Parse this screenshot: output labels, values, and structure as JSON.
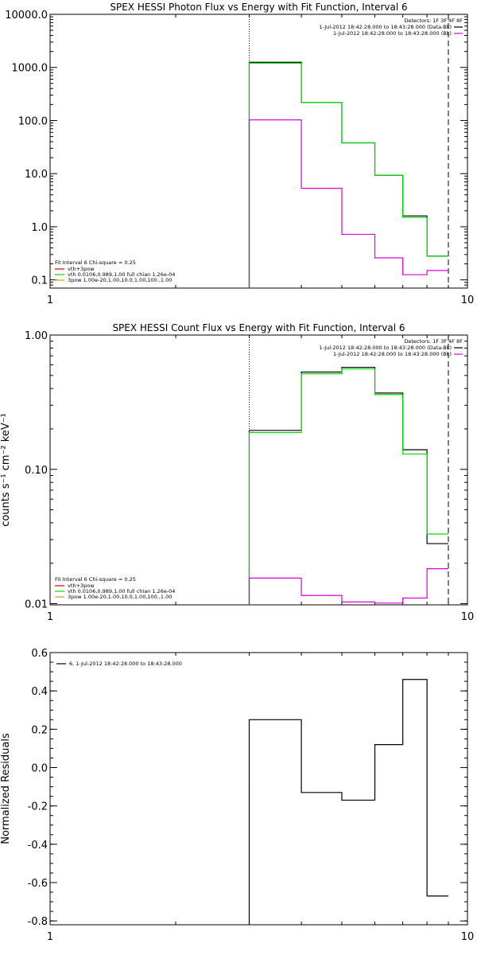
{
  "colors": {
    "black": "#000000",
    "green": "#00dd00",
    "magenta": "#dd00dd",
    "red": "#dd0000",
    "orange": "#dd9900"
  },
  "chart_data": [
    {
      "type": "line",
      "title": "SPEX HESSI Photon Flux vs Energy with Fit Function, Interval 6",
      "xlabel": "",
      "ylabel": "",
      "xscale": "log",
      "yscale": "log",
      "xlim": [
        1,
        10
      ],
      "ylim": [
        0.07,
        10000
      ],
      "xticks": [
        {
          "v": 1,
          "label": "1"
        },
        {
          "v": 10,
          "label": "10"
        }
      ],
      "yticks": [
        {
          "v": 0.1,
          "label": "0.1"
        },
        {
          "v": 1,
          "label": "1.0"
        },
        {
          "v": 10,
          "label": "10.0"
        },
        {
          "v": 100,
          "label": "100.0"
        },
        {
          "v": 1000,
          "label": "1000.0"
        },
        {
          "v": 10000,
          "label": "10000.0"
        }
      ],
      "vlines": [
        {
          "x": 3,
          "style": "dotted"
        },
        {
          "x": 9,
          "style": "dashed"
        }
      ],
      "bin_edges": [
        3,
        4,
        5,
        6,
        7,
        8,
        9
      ],
      "series": [
        {
          "color": "black",
          "values": [
            1250,
            220,
            38,
            9.3,
            1.6,
            0.28
          ]
        },
        {
          "color": "green",
          "values": [
            1200,
            220,
            38,
            9.3,
            1.5,
            0.28
          ]
        },
        {
          "color": "magenta",
          "values": [
            103,
            5.3,
            0.72,
            0.26,
            0.125,
            0.15
          ]
        }
      ],
      "legend_top": {
        "header": "Detectors: 1F 3F 4F 8F",
        "entries": [
          {
            "label": "1-Jul-2012 18:42:28.000 to 18:43:28.000 (Data-Bk)",
            "color": "black"
          },
          {
            "label": "1-Jul-2012 18:42:28.000 to 18:43:28.000 (Bk)",
            "color": "magenta"
          }
        ]
      },
      "legend_fit": {
        "header": "Fit Interval 6   Chi-square = 0.25",
        "entries": [
          {
            "label": "vth+3pow",
            "color": "red"
          },
          {
            "label": "vth 0.0106,0.989,1.00  full chian 1.26e-04",
            "color": "green"
          },
          {
            "label": "3pow 1.00e-20,1.00,10.0,1.00,100.,1.00",
            "color": "orange"
          }
        ]
      }
    },
    {
      "type": "line",
      "title": "SPEX HESSI Count Flux vs Energy with Fit Function, Interval 6",
      "xlabel": "",
      "ylabel": "counts s⁻¹ cm⁻² keV⁻¹",
      "xscale": "log",
      "yscale": "log",
      "xlim": [
        1,
        10
      ],
      "ylim": [
        0.0098,
        1.0
      ],
      "xticks": [
        {
          "v": 1,
          "label": "1"
        },
        {
          "v": 10,
          "label": "10"
        }
      ],
      "yticks": [
        {
          "v": 0.01,
          "label": "0.01"
        },
        {
          "v": 0.1,
          "label": "0.10"
        },
        {
          "v": 1,
          "label": "1.00"
        }
      ],
      "vlines": [
        {
          "x": 3,
          "style": "dotted"
        },
        {
          "x": 9,
          "style": "dashed"
        }
      ],
      "bin_edges": [
        3,
        4,
        5,
        6,
        7,
        8,
        9
      ],
      "series": [
        {
          "color": "black",
          "values": [
            0.195,
            0.53,
            0.575,
            0.37,
            0.14,
            0.028
          ]
        },
        {
          "color": "green",
          "values": [
            0.188,
            0.515,
            0.56,
            0.36,
            0.13,
            0.033
          ]
        },
        {
          "color": "magenta",
          "values": [
            0.0155,
            0.0115,
            0.0103,
            0.0101,
            0.011,
            0.0182
          ]
        }
      ],
      "legend_top": {
        "header": "Detectors: 1F 3F 4F 8F",
        "entries": [
          {
            "label": "1-Jul-2012 18:42:28.000 to 18:43:28.000 (Data-Bk)",
            "color": "black"
          },
          {
            "label": "1-Jul-2012 18:42:28.000 to 18:43:28.000 (Bk)",
            "color": "magenta"
          }
        ]
      },
      "legend_fit": {
        "header": "Fit Interval 6   Chi-square = 0.25",
        "entries": [
          {
            "label": "vth+3pow",
            "color": "red"
          },
          {
            "label": "vth 0.0106,0.989,1.00  full chian 1.26e-04",
            "color": "green"
          },
          {
            "label": "3pow 1.00e-20,1.00,10.0,1.00,100.,1.00",
            "color": "orange"
          }
        ]
      }
    },
    {
      "type": "line",
      "title": "",
      "xlabel": "",
      "ylabel": "Normalized Residuals",
      "xscale": "log",
      "yscale": "linear",
      "xlim": [
        1,
        10
      ],
      "ylim": [
        -0.82,
        0.6
      ],
      "xticks": [
        {
          "v": 1,
          "label": "1"
        },
        {
          "v": 10,
          "label": "10"
        }
      ],
      "yticks": [
        {
          "v": -0.8,
          "label": "-0.8"
        },
        {
          "v": -0.6,
          "label": "-0.6"
        },
        {
          "v": -0.4,
          "label": "-0.4"
        },
        {
          "v": -0.2,
          "label": "-0.2"
        },
        {
          "v": 0.0,
          "label": "0.0"
        },
        {
          "v": 0.2,
          "label": "0.2"
        },
        {
          "v": 0.4,
          "label": "0.4"
        },
        {
          "v": 0.6,
          "label": "0.6"
        }
      ],
      "vlines": [],
      "bin_edges": [
        3,
        4,
        5,
        6,
        7,
        8,
        9
      ],
      "series": [
        {
          "color": "black",
          "values": [
            0.25,
            -0.13,
            -0.17,
            0.12,
            0.46,
            -0.67
          ]
        }
      ],
      "legend_top": {
        "header": "",
        "entries": [
          {
            "label": "6,  1-Jul-2012 18:42:28.000 to 18:43:28.000",
            "color": "black"
          }
        ]
      },
      "legend_fit": null
    }
  ]
}
